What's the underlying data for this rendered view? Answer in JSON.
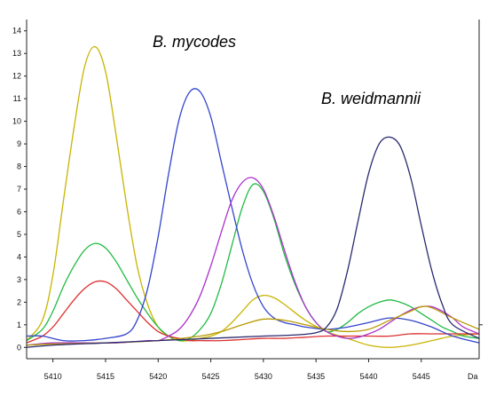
{
  "chart_data": {
    "type": "line",
    "title": "",
    "xlabel": "",
    "ylabel": "",
    "x_unit_label": "Da",
    "xlim": [
      5407.5,
      5450.5
    ],
    "ylim": [
      -0.5,
      14.5
    ],
    "x_ticks": [
      5410,
      5415,
      5420,
      5425,
      5430,
      5435,
      5440,
      5445
    ],
    "y_ticks": [
      0,
      1,
      2,
      3,
      4,
      5,
      6,
      7,
      8,
      9,
      10,
      11,
      12,
      13,
      14
    ],
    "grid": false,
    "legend": "none",
    "annotations": [
      {
        "text": "B. mycodes"
      },
      {
        "text": "B. weidmannii"
      }
    ],
    "series": [
      {
        "color": "#c8b400",
        "x": [
          5407.5,
          5409,
          5410,
          5411,
          5412,
          5413,
          5414,
          5415,
          5416,
          5417,
          5418,
          5419,
          5420,
          5421,
          5422,
          5423,
          5424,
          5425,
          5426,
          5427,
          5428,
          5429,
          5430,
          5431,
          5432,
          5434,
          5436,
          5438,
          5440,
          5442,
          5444,
          5446,
          5448,
          5450.5
        ],
        "y": [
          0.3,
          1.2,
          3.2,
          6.5,
          9.7,
          12.4,
          13.3,
          12.2,
          9.4,
          6.3,
          3.6,
          1.9,
          0.9,
          0.5,
          0.3,
          0.3,
          0.4,
          0.5,
          0.7,
          1.1,
          1.6,
          2.1,
          2.3,
          2.2,
          1.9,
          1.2,
          0.7,
          0.4,
          0.1,
          0.0,
          0.1,
          0.3,
          0.5,
          0.6
        ]
      },
      {
        "color": "#22bb44",
        "x": [
          5407.5,
          5409,
          5410,
          5411,
          5412,
          5413,
          5414,
          5415,
          5416,
          5417,
          5418,
          5419,
          5420,
          5421,
          5422,
          5423,
          5424,
          5425,
          5426,
          5427,
          5428,
          5429,
          5430,
          5431,
          5432,
          5433,
          5434,
          5435,
          5436,
          5437,
          5438,
          5439,
          5440,
          5441,
          5442,
          5443,
          5444,
          5445,
          5446,
          5447,
          5448,
          5449,
          5450.5
        ],
        "y": [
          0.3,
          0.8,
          1.6,
          2.7,
          3.6,
          4.3,
          4.6,
          4.4,
          3.8,
          3.0,
          2.2,
          1.5,
          0.9,
          0.5,
          0.3,
          0.4,
          0.8,
          1.5,
          2.8,
          4.5,
          6.2,
          7.2,
          6.9,
          5.7,
          4.1,
          2.8,
          1.8,
          1.1,
          0.7,
          0.8,
          1.1,
          1.5,
          1.8,
          2.0,
          2.1,
          2.0,
          1.8,
          1.5,
          1.2,
          0.9,
          0.7,
          0.5,
          0.4
        ]
      },
      {
        "color": "#dd3030",
        "x": [
          5407.5,
          5409,
          5410,
          5411,
          5412,
          5413,
          5414,
          5415,
          5416,
          5417,
          5418,
          5419,
          5420,
          5421,
          5422,
          5423,
          5424,
          5426,
          5428,
          5430,
          5432,
          5434,
          5436,
          5438,
          5440,
          5442,
          5444,
          5446,
          5448,
          5450.5
        ],
        "y": [
          0.2,
          0.5,
          0.9,
          1.5,
          2.1,
          2.6,
          2.9,
          2.9,
          2.6,
          2.1,
          1.6,
          1.1,
          0.7,
          0.5,
          0.4,
          0.3,
          0.3,
          0.3,
          0.35,
          0.4,
          0.4,
          0.45,
          0.5,
          0.5,
          0.5,
          0.5,
          0.6,
          0.6,
          0.6,
          0.6
        ]
      },
      {
        "color": "#3344cc",
        "x": [
          5407.5,
          5409,
          5411,
          5413,
          5415,
          5417,
          5418,
          5419,
          5420,
          5421,
          5422,
          5423,
          5424,
          5425,
          5426,
          5427,
          5428,
          5429,
          5430,
          5431,
          5432,
          5433,
          5434,
          5436,
          5438,
          5440,
          5442,
          5444,
          5446,
          5448,
          5450.5
        ],
        "y": [
          0.5,
          0.5,
          0.3,
          0.3,
          0.4,
          0.6,
          1.2,
          2.6,
          4.9,
          7.7,
          10.1,
          11.3,
          11.3,
          10.2,
          8.2,
          6.2,
          4.3,
          2.8,
          1.8,
          1.3,
          1.1,
          1.0,
          0.9,
          0.8,
          0.9,
          1.1,
          1.3,
          1.2,
          0.9,
          0.5,
          0.2
        ]
      },
      {
        "color": "#aa33cc",
        "x": [
          5407.5,
          5410,
          5413,
          5416,
          5419,
          5420,
          5421,
          5422,
          5423,
          5424,
          5425,
          5426,
          5427,
          5428,
          5429,
          5430,
          5431,
          5432,
          5433,
          5434,
          5435,
          5436,
          5437,
          5438,
          5439,
          5440,
          5441,
          5442,
          5443,
          5444,
          5445,
          5446,
          5447,
          5448,
          5449,
          5450.5
        ],
        "y": [
          0.1,
          0.2,
          0.2,
          0.2,
          0.3,
          0.3,
          0.5,
          0.8,
          1.4,
          2.3,
          3.6,
          5.1,
          6.5,
          7.3,
          7.5,
          7.0,
          5.8,
          4.3,
          2.9,
          1.8,
          1.1,
          0.7,
          0.5,
          0.4,
          0.45,
          0.6,
          0.8,
          1.1,
          1.4,
          1.65,
          1.8,
          1.8,
          1.6,
          1.3,
          0.9,
          0.6
        ]
      },
      {
        "color": "#b89a00",
        "x": [
          5407.5,
          5410,
          5415,
          5420,
          5424,
          5426,
          5428,
          5430,
          5432,
          5434,
          5436,
          5438,
          5440,
          5442,
          5444,
          5445,
          5446,
          5448,
          5450.5
        ],
        "y": [
          0.1,
          0.15,
          0.2,
          0.3,
          0.5,
          0.7,
          1.0,
          1.25,
          1.2,
          1.0,
          0.8,
          0.7,
          0.8,
          1.2,
          1.6,
          1.8,
          1.75,
          1.3,
          0.8
        ]
      },
      {
        "color": "#2a2a70",
        "x": [
          5407.5,
          5410,
          5415,
          5420,
          5425,
          5430,
          5433,
          5435,
          5436,
          5437,
          5438,
          5439,
          5440,
          5441,
          5442,
          5443,
          5444,
          5445,
          5446,
          5447,
          5448,
          5450.5
        ],
        "y": [
          0.0,
          0.1,
          0.2,
          0.3,
          0.4,
          0.5,
          0.55,
          0.65,
          0.9,
          1.7,
          3.4,
          5.6,
          7.7,
          9.0,
          9.3,
          8.9,
          7.5,
          5.4,
          3.4,
          1.9,
          1.0,
          0.4
        ]
      }
    ]
  }
}
